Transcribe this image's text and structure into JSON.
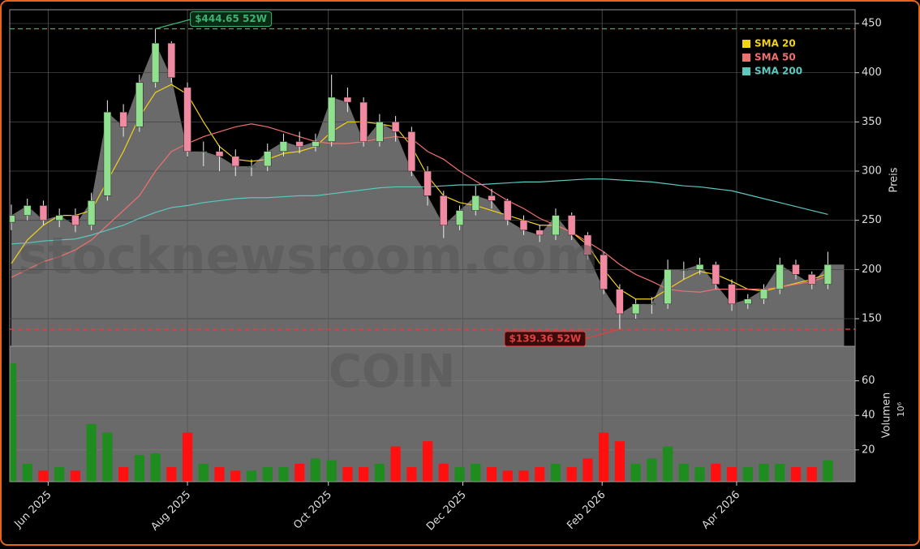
{
  "chart_data": {
    "type": "candlestick",
    "ticker": "COIN",
    "watermark": "stocknewsroom.com",
    "y_label": "Preis",
    "volume_label": "Volumen",
    "volume_unit": "10⁶",
    "x": [
      0,
      1,
      2,
      3,
      4,
      5,
      6,
      7,
      8,
      9,
      10,
      11,
      12,
      13,
      14,
      15,
      16,
      17,
      18,
      19,
      20,
      21,
      22,
      23,
      24,
      25,
      26,
      27,
      28,
      29,
      30,
      31,
      32,
      33,
      34,
      35,
      36,
      37,
      38,
      39,
      40,
      41,
      42,
      43,
      44,
      45,
      46,
      47,
      48,
      49,
      50,
      51
    ],
    "open": [
      248,
      255,
      265,
      250,
      255,
      245,
      275,
      360,
      345,
      390,
      430,
      385,
      320,
      320,
      315,
      305,
      305,
      320,
      330,
      325,
      330,
      375,
      370,
      330,
      350,
      340,
      300,
      275,
      245,
      260,
      275,
      270,
      250,
      240,
      235,
      255,
      235,
      215,
      180,
      155,
      165,
      165,
      200,
      200,
      205,
      185,
      165,
      170,
      180,
      205,
      195,
      185
    ],
    "high": [
      266,
      272,
      270,
      262,
      262,
      278,
      372,
      368,
      398,
      444.65,
      432,
      390,
      330,
      326,
      322,
      312,
      328,
      338,
      340,
      338,
      398,
      385,
      375,
      358,
      356,
      345,
      305,
      280,
      265,
      285,
      282,
      272,
      255,
      245,
      262,
      258,
      238,
      218,
      185,
      170,
      172,
      210,
      208,
      212,
      208,
      190,
      175,
      185,
      212,
      210,
      198,
      218
    ],
    "low": [
      240,
      250,
      245,
      243,
      238,
      240,
      270,
      335,
      340,
      385,
      390,
      315,
      305,
      300,
      295,
      295,
      300,
      315,
      318,
      320,
      325,
      360,
      325,
      325,
      330,
      295,
      265,
      232,
      240,
      255,
      262,
      245,
      235,
      228,
      230,
      230,
      210,
      175,
      139.36,
      150,
      155,
      160,
      190,
      195,
      180,
      158,
      160,
      165,
      175,
      190,
      180,
      180
    ],
    "close": [
      255,
      265,
      250,
      255,
      245,
      270,
      360,
      345,
      390,
      430,
      395,
      320,
      320,
      315,
      305,
      305,
      320,
      330,
      325,
      330,
      375,
      370,
      330,
      350,
      340,
      300,
      275,
      245,
      260,
      275,
      270,
      250,
      240,
      235,
      255,
      235,
      215,
      180,
      155,
      165,
      165,
      200,
      200,
      205,
      185,
      165,
      170,
      180,
      205,
      195,
      185,
      205
    ],
    "volume": [
      70,
      12,
      8,
      10,
      8,
      35,
      30,
      10,
      17,
      18,
      10,
      30,
      12,
      10,
      8,
      8,
      10,
      10,
      12,
      15,
      14,
      10,
      10,
      12,
      22,
      10,
      25,
      12,
      10,
      12,
      10,
      8,
      8,
      10,
      12,
      10,
      15,
      30,
      25,
      12,
      15,
      22,
      12,
      10,
      12,
      10,
      10,
      12,
      12,
      10,
      10,
      14
    ],
    "series": [
      {
        "name": "SMA 20",
        "color": "#f2d41a",
        "values": [
          206,
          230,
          245,
          255,
          255,
          260,
          290,
          320,
          355,
          380,
          388,
          378,
          350,
          325,
          312,
          310,
          312,
          318,
          320,
          325,
          340,
          350,
          350,
          348,
          345,
          325,
          295,
          275,
          268,
          265,
          260,
          255,
          250,
          245,
          245,
          238,
          225,
          200,
          180,
          170,
          170,
          180,
          190,
          198,
          195,
          188,
          180,
          178,
          182,
          186,
          190,
          196
        ]
      },
      {
        "name": "SMA 50",
        "color": "#f07070",
        "values": [
          192,
          200,
          208,
          213,
          220,
          230,
          245,
          260,
          275,
          300,
          320,
          328,
          335,
          340,
          345,
          348,
          345,
          340,
          335,
          330,
          328,
          328,
          330,
          333,
          335,
          333,
          320,
          312,
          300,
          290,
          280,
          270,
          262,
          252,
          245,
          238,
          228,
          218,
          205,
          195,
          188,
          180,
          178,
          177,
          180,
          180,
          180,
          180,
          182,
          185,
          188,
          193
        ]
      },
      {
        "name": "SMA 200",
        "color": "#5cc8c0",
        "values": [
          226,
          227,
          229,
          230,
          231,
          235,
          240,
          245,
          252,
          258,
          263,
          265,
          268,
          270,
          272,
          273,
          273,
          274,
          275,
          275,
          277,
          279,
          281,
          283,
          284,
          284,
          284,
          285,
          286,
          286,
          287,
          288,
          289,
          289,
          290,
          291,
          292,
          292,
          291,
          290,
          289,
          287,
          285,
          284,
          282,
          280,
          276,
          272,
          268,
          264,
          260,
          256
        ]
      }
    ],
    "annotations": [
      {
        "x": 9,
        "value": 444.65,
        "label": "$444.65 52W",
        "color": "#3cb371"
      },
      {
        "x": 38,
        "value": 139.36,
        "label": "$139.36 52W",
        "color": "#e04040"
      }
    ],
    "up_color": "#90e090",
    "down_color": "#f08aa0",
    "volume_up_color": "#1e8c1e",
    "volume_down_color": "#ff1010",
    "xlim": [
      -0.1,
      52.7
    ],
    "xticks": [
      {
        "value": 2.3,
        "label": "Jun 2025"
      },
      {
        "value": 11.0,
        "label": "Aug 2025"
      },
      {
        "value": 19.8,
        "label": "Oct 2025"
      },
      {
        "value": 28.2,
        "label": "Dec 2025"
      },
      {
        "value": 36.9,
        "label": "Feb 2026"
      },
      {
        "value": 45.3,
        "label": "Apr 2026"
      }
    ],
    "ylim": [
      122,
      464
    ],
    "yticks": [
      150,
      200,
      250,
      300,
      350,
      400,
      450
    ],
    "volume_ylim": [
      1.6,
      80
    ],
    "volume_yticks": [
      20,
      40,
      60
    ],
    "grid": true,
    "legend": "upper right"
  }
}
